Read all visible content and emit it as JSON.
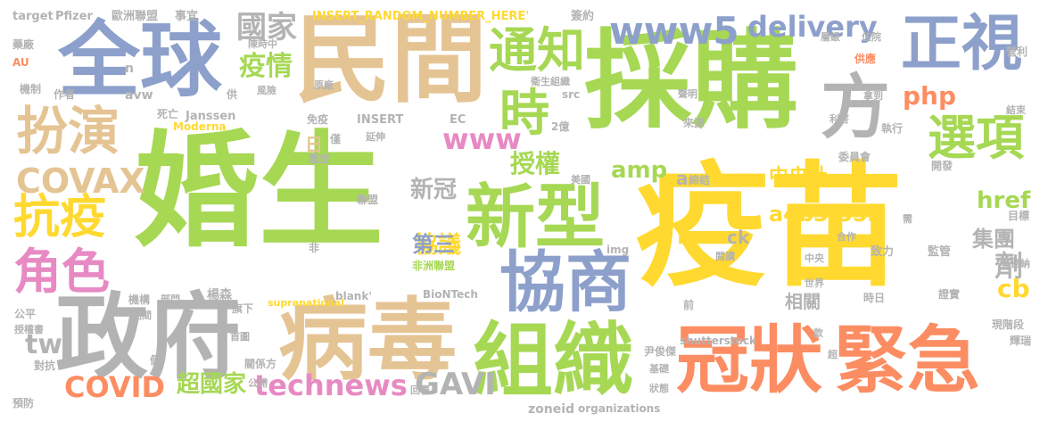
{
  "colors": {
    "green": "#a6d854",
    "yellow": "#ffd92f",
    "tan": "#e5c494",
    "blue": "#8da0cb",
    "gray": "#b3b3b3",
    "orange": "#fc8d62",
    "pink": "#e78ac3",
    "teal": "#66c2a5"
  },
  "words": [
    "婚生",
    "疫苗",
    "採購",
    "民間",
    "全球",
    "政府",
    "病毒",
    "冠狀",
    "緊急",
    "組織",
    "新型",
    "協商",
    "正視",
    "方",
    "選項",
    "通知",
    "時",
    "扮演",
    "抗疫",
    "角色",
    "COVAX",
    "www5",
    "delivery",
    "國家",
    "疫情",
    "www",
    "授權",
    "amp",
    "php",
    "a4b3f35b",
    "中央社",
    "協議",
    "第三",
    "新冠",
    "集團",
    "劑",
    "cb",
    "href",
    "technews",
    "GAVI",
    "COVID",
    "超國家",
    "tw",
    "相關",
    "ck",
    "a",
    "日",
    "INSERT_RANDOM_NUMBER_HERE'",
    "target",
    "Pfizer",
    "歐洲聯盟",
    "事宜",
    "簽約",
    "陳時中",
    "層級",
    "住院",
    "藥廠",
    "AU",
    "n",
    "供應",
    "營利",
    "機制",
    "作者",
    "avw",
    "供",
    "風險",
    "原廠",
    "src",
    "聲明",
    "衛生組織",
    "拿到",
    "結束",
    "死亡",
    "Janssen",
    "免疫",
    "INSERT",
    "EC",
    "2億",
    "Moderna",
    "僅",
    "延伸",
    "來源",
    "利害",
    "執行",
    "重症",
    "美國",
    "締結",
    "委員會",
    "開發",
    "目標",
    "聯盟",
    "需",
    "非",
    "非洲聯盟",
    "img",
    "合作",
    "致力",
    "監管",
    "中央",
    "閱讀",
    "莫德納",
    "機構",
    "部門",
    "楊森",
    "_blank'",
    "BioNTech",
    "世界",
    "公平",
    "期間",
    "旗下",
    "supranational",
    "前",
    "時日",
    "證實",
    "授權書",
    "首圖",
    "款",
    "現階段",
    "假",
    "shutterstock",
    "輝瑞",
    "對抗",
    "關係方",
    "尹俊傑",
    "公開",
    "基礎",
    "超",
    "回覆",
    "狀態",
    "預防",
    "zoneid",
    "organizations"
  ]
}
